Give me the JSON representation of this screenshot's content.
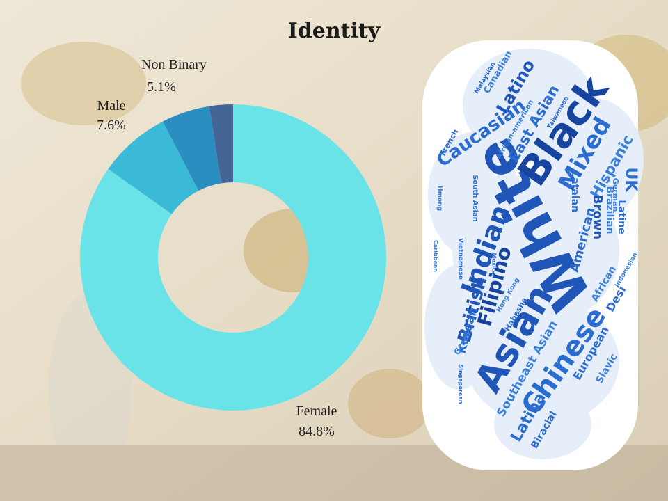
{
  "chart_data": {
    "type": "donut",
    "title": "Identity",
    "categories": [
      "Female",
      "Male",
      "Non Binary",
      null
    ],
    "values": [
      84.8,
      7.6,
      5.1,
      2.5
    ],
    "value_labels": [
      "84.8%",
      "7.6%",
      "5.1%",
      null
    ],
    "colors": [
      "#6ae3e8",
      "#3bbad8",
      "#2a8fc0",
      "#466597"
    ]
  },
  "word_cloud": {
    "words": [
      "White",
      "Black",
      "Asian",
      "Chinese",
      "Indian",
      "Mixed",
      "Caucasian",
      "Latino",
      "East Asian",
      "Hispanic",
      "British",
      "Filipino",
      "Korean",
      "Southeast Asian",
      "Latina",
      "European",
      "Slavic",
      "Biracial",
      "African",
      "Desi",
      "American",
      "Brown",
      "Catalan",
      "Brazilian",
      "Latine",
      "German",
      "UK",
      "Canadian",
      "Malaysian",
      "African-american",
      "Taiwanese",
      "French",
      "Hmong",
      "South Asian",
      "Vietnamese",
      "Caribbean",
      "Mexican",
      "Hong Kong",
      "Habesha",
      "Greek",
      "Singaporean",
      "Indonesian"
    ]
  }
}
